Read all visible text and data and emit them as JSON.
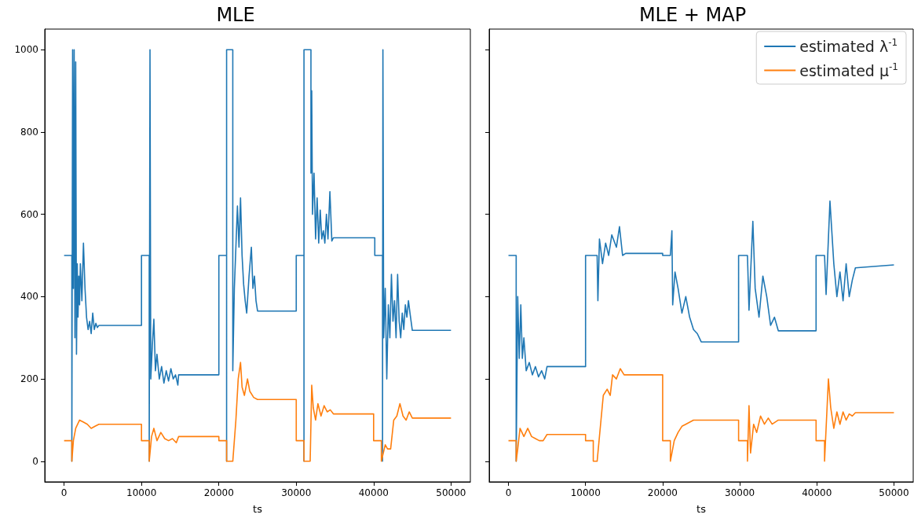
{
  "chart_data": [
    {
      "type": "line",
      "title": "MLE",
      "xlabel": "ts",
      "xlim": [
        -2500,
        52500
      ],
      "xticks": [
        0,
        10000,
        20000,
        30000,
        40000,
        50000
      ],
      "ylim": [
        -50,
        1050
      ],
      "yticks": [
        0,
        200,
        400,
        600,
        800,
        1000
      ],
      "grid": false,
      "legend": false,
      "marker": "none",
      "line_style": "solid",
      "series": [
        {
          "color": "#1f77b4",
          "x": [
            0,
            1000,
            1000,
            1100,
            1200,
            1300,
            1400,
            1500,
            1600,
            1700,
            1800,
            1900,
            2000,
            2100,
            2300,
            2500,
            2700,
            2900,
            3100,
            3300,
            3500,
            3700,
            3900,
            4100,
            4300,
            4500,
            10000,
            10000,
            11000,
            11000,
            11100,
            11200,
            11400,
            11600,
            11800,
            12000,
            12300,
            12600,
            12900,
            13200,
            13500,
            13800,
            14100,
            14400,
            14700,
            14800,
            20000,
            20000,
            21000,
            21000,
            21000,
            21800,
            21800,
            22000,
            22200,
            22400,
            22600,
            22800,
            23000,
            23200,
            23400,
            23600,
            23900,
            24200,
            24400,
            24600,
            24800,
            25000,
            30000,
            30000,
            31000,
            31000,
            31000,
            31900,
            31900,
            32000,
            32100,
            32300,
            32500,
            32700,
            32900,
            33100,
            33300,
            33500,
            33700,
            33900,
            34100,
            34350,
            34600,
            34800,
            40150,
            40150,
            41150,
            41150,
            41200,
            41300,
            41500,
            41700,
            41900,
            42100,
            42300,
            42500,
            42700,
            42900,
            43100,
            43300,
            43500,
            43700,
            43900,
            44100,
            44300,
            44500,
            44700,
            45000,
            50000
          ],
          "values": [
            500,
            500,
            0,
            1000,
            420,
            1000,
            300,
            970,
            260,
            480,
            350,
            450,
            380,
            480,
            390,
            530,
            420,
            350,
            320,
            340,
            310,
            360,
            320,
            335,
            325,
            330,
            330,
            500,
            500,
            0,
            1000,
            200,
            280,
            345,
            220,
            260,
            200,
            230,
            190,
            220,
            195,
            225,
            200,
            210,
            185,
            210,
            210,
            500,
            500,
            0,
            1000,
            1000,
            220,
            420,
            520,
            620,
            520,
            640,
            500,
            430,
            390,
            360,
            450,
            520,
            420,
            450,
            390,
            365,
            365,
            500,
            500,
            0,
            1000,
            1000,
            700,
            900,
            600,
            700,
            540,
            640,
            530,
            610,
            540,
            560,
            530,
            600,
            540,
            655,
            535,
            543,
            543,
            500,
            500,
            0,
            1000,
            300,
            420,
            200,
            380,
            300,
            454,
            340,
            390,
            300,
            454,
            340,
            300,
            360,
            320,
            380,
            350,
            390,
            360,
            318,
            318
          ]
        },
        {
          "color": "#ff7f0e",
          "x": [
            0,
            1000,
            1000,
            1200,
            1500,
            2000,
            2500,
            3000,
            3500,
            4000,
            4500,
            10000,
            10000,
            11000,
            11000,
            11300,
            11600,
            12000,
            12500,
            13000,
            13500,
            14000,
            14500,
            14800,
            20000,
            20000,
            21000,
            21000,
            21800,
            22200,
            22500,
            22800,
            23000,
            23300,
            23700,
            24000,
            24500,
            25000,
            30000,
            30000,
            31000,
            31000,
            31800,
            32000,
            32200,
            32500,
            32800,
            33200,
            33600,
            34000,
            34400,
            34800,
            40000,
            40000,
            41000,
            41000,
            41500,
            41800,
            42200,
            42600,
            43000,
            43400,
            43800,
            44200,
            44600,
            45000,
            50000
          ],
          "values": [
            50,
            50,
            0,
            50,
            80,
            100,
            95,
            90,
            80,
            85,
            90,
            90,
            50,
            50,
            0,
            60,
            80,
            50,
            70,
            55,
            50,
            55,
            45,
            60,
            60,
            50,
            50,
            0,
            0,
            100,
            200,
            240,
            180,
            160,
            200,
            170,
            155,
            150,
            150,
            50,
            50,
            0,
            0,
            185,
            130,
            100,
            140,
            110,
            135,
            120,
            125,
            115,
            115,
            50,
            50,
            0,
            40,
            30,
            30,
            100,
            110,
            140,
            110,
            100,
            120,
            105,
            105
          ]
        }
      ]
    },
    {
      "type": "line",
      "title": "MLE + MAP",
      "xlabel": "ts",
      "xlim": [
        -2500,
        52500
      ],
      "xticks": [
        0,
        10000,
        20000,
        30000,
        40000,
        50000
      ],
      "ylim": [
        -50,
        1050
      ],
      "yticks": [
        0,
        200,
        400,
        600,
        800,
        1000
      ],
      "tick_labels": "x",
      "grid": false,
      "legend": "top right",
      "marker": "none",
      "line_style": "solid",
      "series": [
        {
          "name": "estimated λ$^{-1}$",
          "color": "#1f77b4",
          "x": [
            0,
            1000,
            1000,
            1200,
            1400,
            1600,
            1800,
            2000,
            2300,
            2700,
            3100,
            3500,
            3900,
            4300,
            4700,
            5000,
            10000,
            10000,
            11500,
            11600,
            11800,
            12200,
            12600,
            13000,
            13400,
            14000,
            14400,
            14800,
            15200,
            20000,
            20000,
            21000,
            21200,
            21300,
            21600,
            22000,
            22500,
            23000,
            23500,
            24000,
            24500,
            25000,
            29850,
            29850,
            31000,
            31200,
            31700,
            32000,
            32500,
            33000,
            33500,
            34000,
            34500,
            35000,
            39900,
            39900,
            41000,
            41200,
            41700,
            42200,
            42600,
            43000,
            43400,
            43800,
            44200,
            44600,
            45000,
            50000
          ],
          "values": [
            500,
            500,
            0,
            400,
            250,
            380,
            250,
            300,
            220,
            240,
            210,
            230,
            205,
            220,
            200,
            230,
            230,
            500,
            500,
            390,
            540,
            480,
            530,
            500,
            550,
            520,
            570,
            500,
            505,
            505,
            500,
            500,
            560,
            380,
            460,
            420,
            360,
            400,
            350,
            320,
            310,
            290,
            290,
            500,
            500,
            367,
            583,
            420,
            350,
            450,
            400,
            330,
            350,
            317,
            317,
            500,
            500,
            405,
            632,
            480,
            400,
            460,
            390,
            480,
            400,
            440,
            470,
            477
          ]
        },
        {
          "name": "estimated μ$^{-1}$",
          "color": "#ff7f0e",
          "x": [
            0,
            1000,
            1000,
            1200,
            1500,
            2000,
            2500,
            3000,
            3500,
            4000,
            4500,
            5000,
            10000,
            10000,
            11000,
            11000,
            11500,
            12000,
            12300,
            12800,
            13200,
            13500,
            14000,
            14500,
            15000,
            20000,
            20000,
            21000,
            21000,
            21500,
            22000,
            22500,
            23000,
            24000,
            25000,
            29850,
            29850,
            31000,
            31000,
            31200,
            31400,
            31800,
            32200,
            32700,
            33200,
            33700,
            34200,
            35000,
            39900,
            39900,
            41000,
            41000,
            41500,
            41800,
            42200,
            42600,
            43000,
            43400,
            43800,
            44200,
            44600,
            45000,
            50000
          ],
          "values": [
            50,
            50,
            0,
            30,
            80,
            60,
            80,
            60,
            55,
            50,
            50,
            65,
            65,
            50,
            50,
            0,
            0,
            100,
            160,
            175,
            160,
            210,
            200,
            225,
            210,
            210,
            50,
            50,
            0,
            50,
            70,
            85,
            90,
            100,
            100,
            100,
            50,
            50,
            0,
            135,
            20,
            90,
            70,
            110,
            90,
            105,
            90,
            100,
            100,
            50,
            50,
            0,
            200,
            130,
            80,
            120,
            90,
            120,
            100,
            115,
            110,
            118,
            118
          ]
        }
      ]
    }
  ]
}
